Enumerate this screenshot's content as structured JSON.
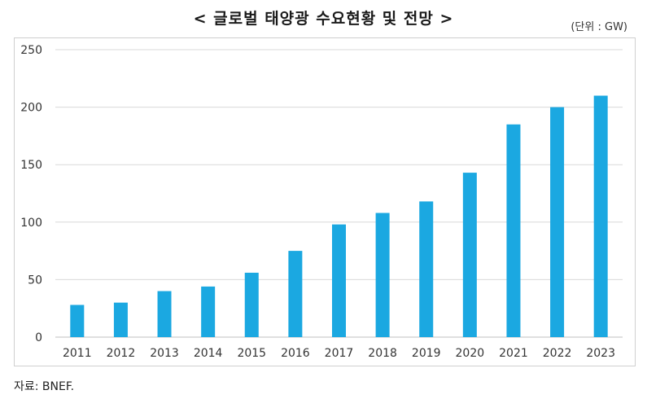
{
  "chart_data": {
    "type": "bar",
    "title": "< 글로벌 태양광 수요현황 및 전망 >",
    "unit_label": "(단위 : GW)",
    "categories": [
      "2011",
      "2012",
      "2013",
      "2014",
      "2015",
      "2016",
      "2017",
      "2018",
      "2019",
      "2020",
      "2021",
      "2022",
      "2023"
    ],
    "values": [
      28,
      30,
      40,
      44,
      56,
      75,
      98,
      108,
      118,
      143,
      185,
      200,
      210
    ],
    "ylim": [
      0,
      250
    ],
    "yticks": [
      "0",
      "50",
      "100",
      "150",
      "200",
      "250"
    ],
    "ytick_values": [
      0,
      50,
      100,
      150,
      200,
      250
    ],
    "grid": true,
    "bar_color": "#1ba8e1",
    "grid_color": "#d9d9d9"
  },
  "source": "자료: BNEF."
}
